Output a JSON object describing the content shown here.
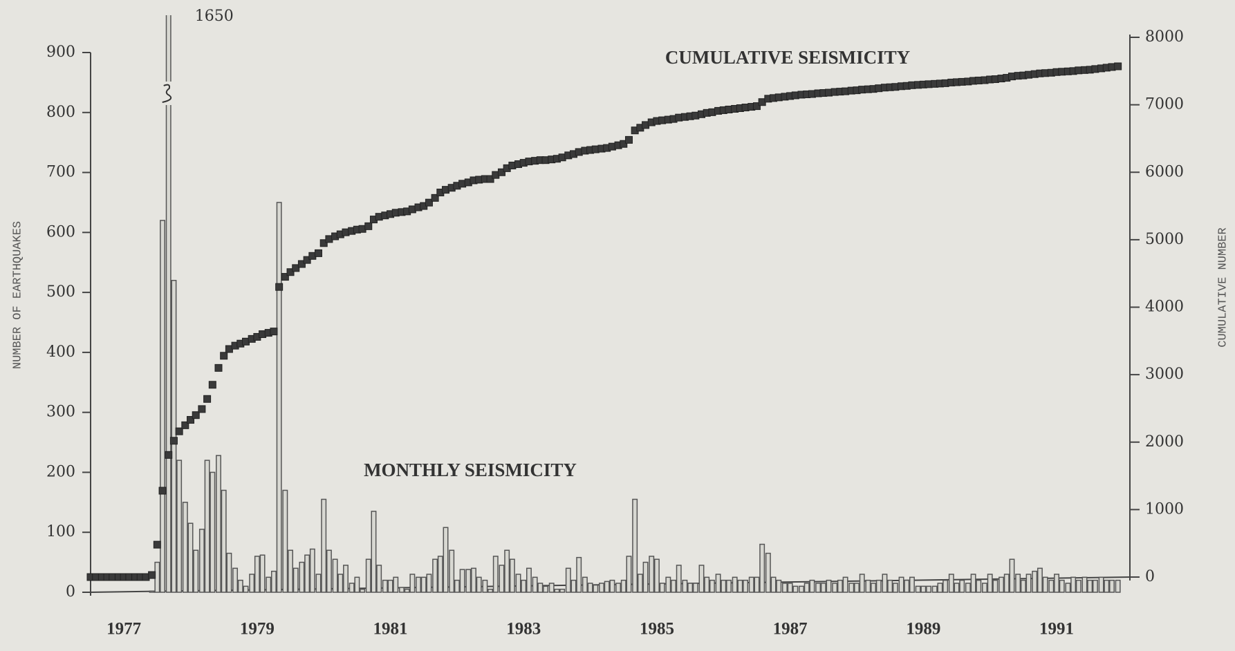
{
  "chart_data": {
    "type": "bar",
    "y_label": "NUMBER OF EARTHQUAKES",
    "y2_label": "CUMULATIVE NUMBER",
    "xlim": [
      1976.5,
      1992.1
    ],
    "xticks": [
      1977,
      1979,
      1981,
      1983,
      1985,
      1987,
      1989,
      1991
    ],
    "ylim": [
      0,
      900
    ],
    "yticks": [
      0,
      100,
      200,
      300,
      400,
      500,
      600,
      700,
      800,
      900
    ],
    "y2lim": [
      0,
      8000
    ],
    "y2ticks": [
      0,
      1000,
      2000,
      3000,
      4000,
      5000,
      6000,
      7000,
      8000
    ],
    "x": [
      1976.5,
      1976.58,
      1976.67,
      1976.75,
      1976.83,
      1976.92,
      1977,
      1977.08,
      1977.17,
      1977.25,
      1977.33,
      1977.42,
      1977.5,
      1977.58,
      1977.67,
      1977.75,
      1977.83,
      1977.92,
      1978,
      1978.08,
      1978.17,
      1978.25,
      1978.33,
      1978.42,
      1978.5,
      1978.58,
      1978.67,
      1978.75,
      1978.83,
      1978.92,
      1979,
      1979.08,
      1979.17,
      1979.25,
      1979.33,
      1979.42,
      1979.5,
      1979.58,
      1979.67,
      1979.75,
      1979.83,
      1979.92,
      1980,
      1980.08,
      1980.17,
      1980.25,
      1980.33,
      1980.42,
      1980.5,
      1980.58,
      1980.67,
      1980.75,
      1980.83,
      1980.92,
      1981,
      1981.08,
      1981.17,
      1981.25,
      1981.33,
      1981.42,
      1981.5,
      1981.58,
      1981.67,
      1981.75,
      1981.83,
      1981.92,
      1982,
      1982.08,
      1982.17,
      1982.25,
      1982.33,
      1982.42,
      1982.5,
      1982.58,
      1982.67,
      1982.75,
      1982.83,
      1982.92,
      1983,
      1983.08,
      1983.17,
      1983.25,
      1983.33,
      1983.42,
      1983.5,
      1983.58,
      1983.67,
      1983.75,
      1983.83,
      1983.92,
      1984,
      1984.08,
      1984.17,
      1984.25,
      1984.33,
      1984.42,
      1984.5,
      1984.58,
      1984.67,
      1984.75,
      1984.83,
      1984.92,
      1985,
      1985.08,
      1985.17,
      1985.25,
      1985.33,
      1985.42,
      1985.5,
      1985.58,
      1985.67,
      1985.75,
      1985.83,
      1985.92,
      1986,
      1986.08,
      1986.17,
      1986.25,
      1986.33,
      1986.42,
      1986.5,
      1986.58,
      1986.67,
      1986.75,
      1986.83,
      1986.92,
      1987,
      1987.08,
      1987.17,
      1987.25,
      1987.33,
      1987.42,
      1987.5,
      1987.58,
      1987.67,
      1987.75,
      1987.83,
      1987.92,
      1988,
      1988.08,
      1988.17,
      1988.25,
      1988.33,
      1988.42,
      1988.5,
      1988.58,
      1988.67,
      1988.75,
      1988.83,
      1988.92,
      1989,
      1989.08,
      1989.17,
      1989.25,
      1989.33,
      1989.42,
      1989.5,
      1989.58,
      1989.67,
      1989.75,
      1989.83,
      1989.92,
      1990,
      1990.08,
      1990.17,
      1990.25,
      1990.33,
      1990.42,
      1990.5,
      1990.58,
      1990.67,
      1990.75,
      1990.83,
      1990.92,
      1991,
      1991.08,
      1991.17,
      1991.25,
      1991.33,
      1991.42,
      1991.5,
      1991.58,
      1991.67,
      1991.75,
      1991.83,
      1991.92
    ],
    "series": [
      {
        "name": "MONTHLY SEISMICITY",
        "color": "#555555",
        "values": [
          0,
          0,
          0,
          0,
          0,
          0,
          0,
          0,
          0,
          0,
          0,
          2,
          50,
          620,
          1650,
          520,
          220,
          150,
          115,
          70,
          105,
          220,
          200,
          228,
          170,
          65,
          40,
          20,
          10,
          30,
          60,
          62,
          25,
          35,
          650,
          170,
          70,
          40,
          50,
          62,
          72,
          30,
          155,
          70,
          55,
          30,
          45,
          15,
          25,
          5,
          55,
          135,
          45,
          20,
          20,
          25,
          8,
          5,
          30,
          25,
          25,
          30,
          55,
          60,
          108,
          70,
          20,
          38,
          38,
          40,
          25,
          20,
          5,
          60,
          45,
          70,
          55,
          30,
          20,
          40,
          25,
          15,
          10,
          15,
          5,
          5,
          40,
          20,
          58,
          25,
          15,
          12,
          15,
          18,
          20,
          15,
          20,
          60,
          155,
          30,
          50,
          60,
          55,
          15,
          25,
          20,
          45,
          20,
          15,
          15,
          45,
          25,
          20,
          30,
          20,
          20,
          25,
          20,
          20,
          25,
          25,
          80,
          65,
          25,
          20,
          15,
          15,
          10,
          10,
          15,
          20,
          15,
          15,
          20,
          15,
          20,
          25,
          15,
          15,
          30,
          20,
          15,
          20,
          30,
          20,
          15,
          25,
          20,
          25,
          10,
          10,
          10,
          10,
          15,
          20,
          30,
          15,
          20,
          15,
          30,
          20,
          15,
          30,
          20,
          25,
          30,
          55,
          30,
          20,
          30,
          35,
          40,
          25,
          20,
          30,
          20,
          15,
          25,
          20,
          25,
          20,
          20,
          25,
          20,
          20,
          20
        ]
      },
      {
        "name": "CUMULATIVE SEISMICITY",
        "color": "#3a3a3a",
        "axis": "y2",
        "type": "scatter",
        "values": [
          0,
          0,
          0,
          0,
          0,
          0,
          0,
          0,
          0,
          0,
          0,
          30,
          480,
          1280,
          1810,
          2020,
          2160,
          2250,
          2330,
          2400,
          2490,
          2640,
          2850,
          3100,
          3280,
          3380,
          3430,
          3460,
          3490,
          3530,
          3560,
          3600,
          3620,
          3640,
          4300,
          4450,
          4520,
          4580,
          4640,
          4700,
          4760,
          4800,
          4950,
          5010,
          5050,
          5080,
          5110,
          5130,
          5150,
          5160,
          5200,
          5300,
          5340,
          5360,
          5380,
          5400,
          5410,
          5420,
          5450,
          5480,
          5500,
          5550,
          5620,
          5700,
          5740,
          5770,
          5800,
          5830,
          5850,
          5880,
          5890,
          5900,
          5900,
          5960,
          6000,
          6060,
          6100,
          6120,
          6140,
          6160,
          6170,
          6180,
          6180,
          6190,
          6200,
          6220,
          6250,
          6270,
          6300,
          6320,
          6330,
          6340,
          6350,
          6360,
          6380,
          6400,
          6420,
          6480,
          6620,
          6660,
          6700,
          6740,
          6760,
          6770,
          6780,
          6790,
          6810,
          6820,
          6830,
          6840,
          6860,
          6880,
          6890,
          6910,
          6920,
          6930,
          6940,
          6950,
          6960,
          6970,
          6980,
          7040,
          7090,
          7100,
          7110,
          7120,
          7130,
          7140,
          7150,
          7155,
          7160,
          7170,
          7175,
          7180,
          7190,
          7195,
          7200,
          7210,
          7215,
          7225,
          7230,
          7235,
          7245,
          7255,
          7260,
          7265,
          7275,
          7280,
          7290,
          7295,
          7300,
          7305,
          7310,
          7315,
          7320,
          7330,
          7335,
          7340,
          7345,
          7355,
          7360,
          7365,
          7375,
          7380,
          7390,
          7400,
          7420,
          7430,
          7435,
          7445,
          7455,
          7465,
          7470,
          7475,
          7485,
          7490,
          7495,
          7500,
          7510,
          7515,
          7520,
          7530,
          7540,
          7550,
          7560,
          7570
        ]
      }
    ],
    "labelled_point": 14
  }
}
